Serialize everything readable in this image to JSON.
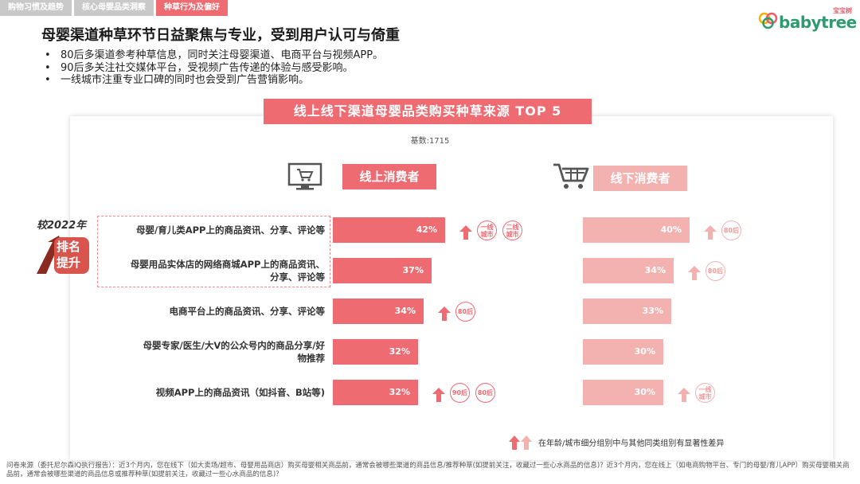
{
  "tabs": [
    "购物习惯及趋势",
    "核心母婴品类洞察",
    "种草行为及偏好"
  ],
  "logo": {
    "cn": "宝宝树",
    "en": "babytree"
  },
  "title": "母婴渠道种草环节日益聚焦与专业，受到用户认可与倚重",
  "bullets": [
    "80后多渠道参考种草信息，同时关注母婴渠道、电商平台与视频APP。",
    "90后多关注社交媒体平台，受视频广告传递的体验与感受影响。",
    "一线城市注重专业口碑的同时也会受到广告营销影响。"
  ],
  "banner": "线上线下渠道母婴品类购买种草来源 TOP 5",
  "base_text": "基数:1715",
  "compare_label": "较2022年",
  "rank_label_1": "排名",
  "rank_label_2": "提升",
  "colors": {
    "accent": "#ef6b72",
    "light": "#f3b2b0"
  },
  "icons": [
    "computer-cart-icon",
    "shopping-cart-icon",
    "up-arrow-icon",
    "rank-up-arrow-icon"
  ],
  "chart_data": {
    "type": "bar",
    "orientation": "horizontal",
    "categories": [
      "母婴/育儿类APP上的商品资讯、分享、评论等",
      "母婴用品实体店的网络商城APP上的商品资讯、分享、评论等",
      "电商平台上的商品资讯、分享、评论等",
      "母婴专家/医生/大V的公众号内的商品分享/好物推荐",
      "视频APP上的商品资讯（如抖音、B站等)"
    ],
    "category_display": [
      [
        "母婴/育儿类APP上的商品资讯、分享、评论等"
      ],
      [
        "母婴用品实体店的网络商城APP上的商品资讯、",
        "分享、评论等"
      ],
      [
        "电商平台上的商品资讯、分享、评论等"
      ],
      [
        "母婴专家/医生/大V的公众号内的商品分享/好",
        "物推荐"
      ],
      [
        "视频APP上的商品资讯（如抖音、B站等)"
      ]
    ],
    "series": [
      {
        "name": "线上消费者",
        "values": [
          42,
          37,
          34,
          32,
          32
        ],
        "labels": [
          "42%",
          "37%",
          "34%",
          "32%",
          "32%"
        ],
        "significance": [
          [
            "一线城市",
            "二线城市"
          ],
          [],
          [
            "80后"
          ],
          [],
          [
            "90后",
            "80后"
          ]
        ]
      },
      {
        "name": "线下消费者",
        "values": [
          40,
          34,
          33,
          30,
          30
        ],
        "labels": [
          "40%",
          "34%",
          "33%",
          "30%",
          "30%"
        ],
        "significance": [
          [
            "80后"
          ],
          [
            "80后"
          ],
          [],
          [],
          [
            "一线城市"
          ]
        ]
      }
    ],
    "rank_improved": [
      0,
      1
    ],
    "xlim": [
      0,
      60
    ],
    "legend_text": "在年龄/城市细分组别中与其他同类组别有显著性差异"
  },
  "footnote": "问卷来源（委托尼尔森IQ执行报告）：近3个月内，您在线下（如大卖场/超市、母婴用品商店）购买母婴相关商品前，通常会被哪些渠道的商品信息/推荐种草(如提前关注，收藏过一些心水商品的信息)？近3个月内，您在线上（如电商购物平台、专门的母婴/育儿APP）购买母婴相关商品前，通常会被哪些渠道的商品信息或推荐种草(如提前关注，收藏过一些心水商品的信息)？"
}
